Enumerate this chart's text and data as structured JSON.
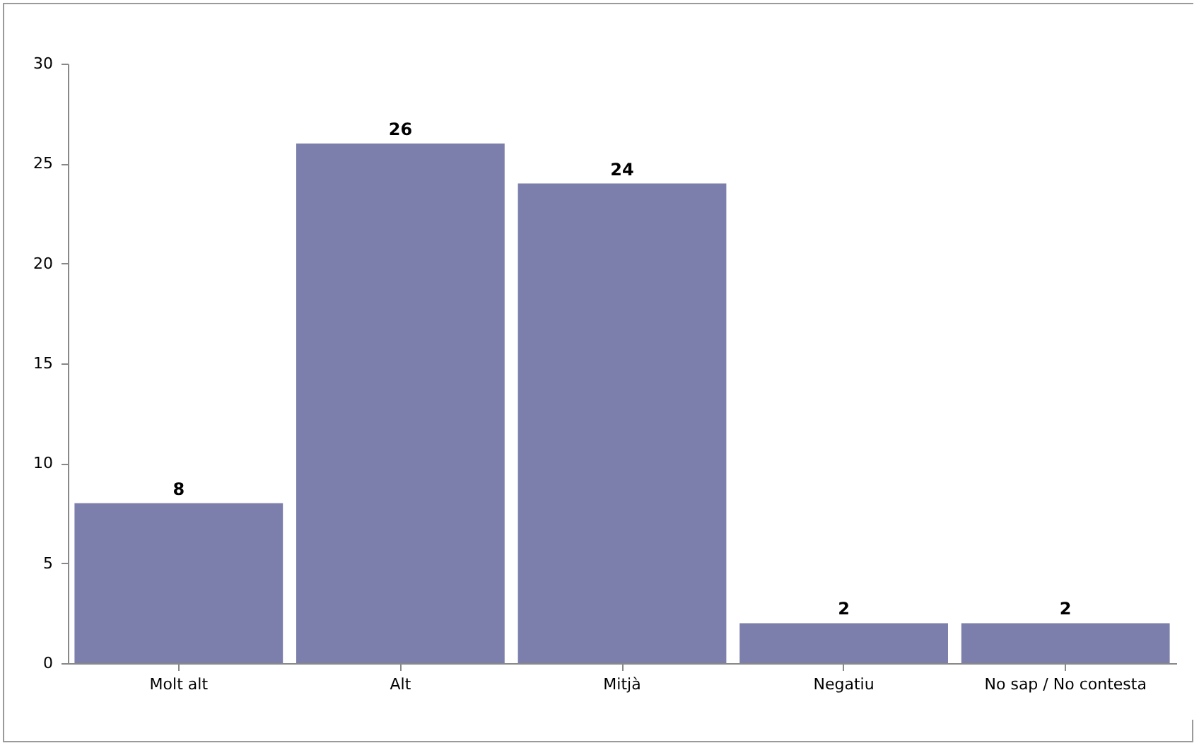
{
  "chart_data": {
    "type": "bar",
    "categories": [
      "Molt alt",
      "Alt",
      "Mitjà",
      "Negatiu",
      "No sap / No contesta"
    ],
    "values": [
      8,
      26,
      24,
      2,
      2
    ],
    "color": "#7c7fab",
    "ylim": [
      0,
      30
    ],
    "yticks": [
      0,
      5,
      10,
      15,
      20,
      25,
      30
    ],
    "data_labels": true
  }
}
